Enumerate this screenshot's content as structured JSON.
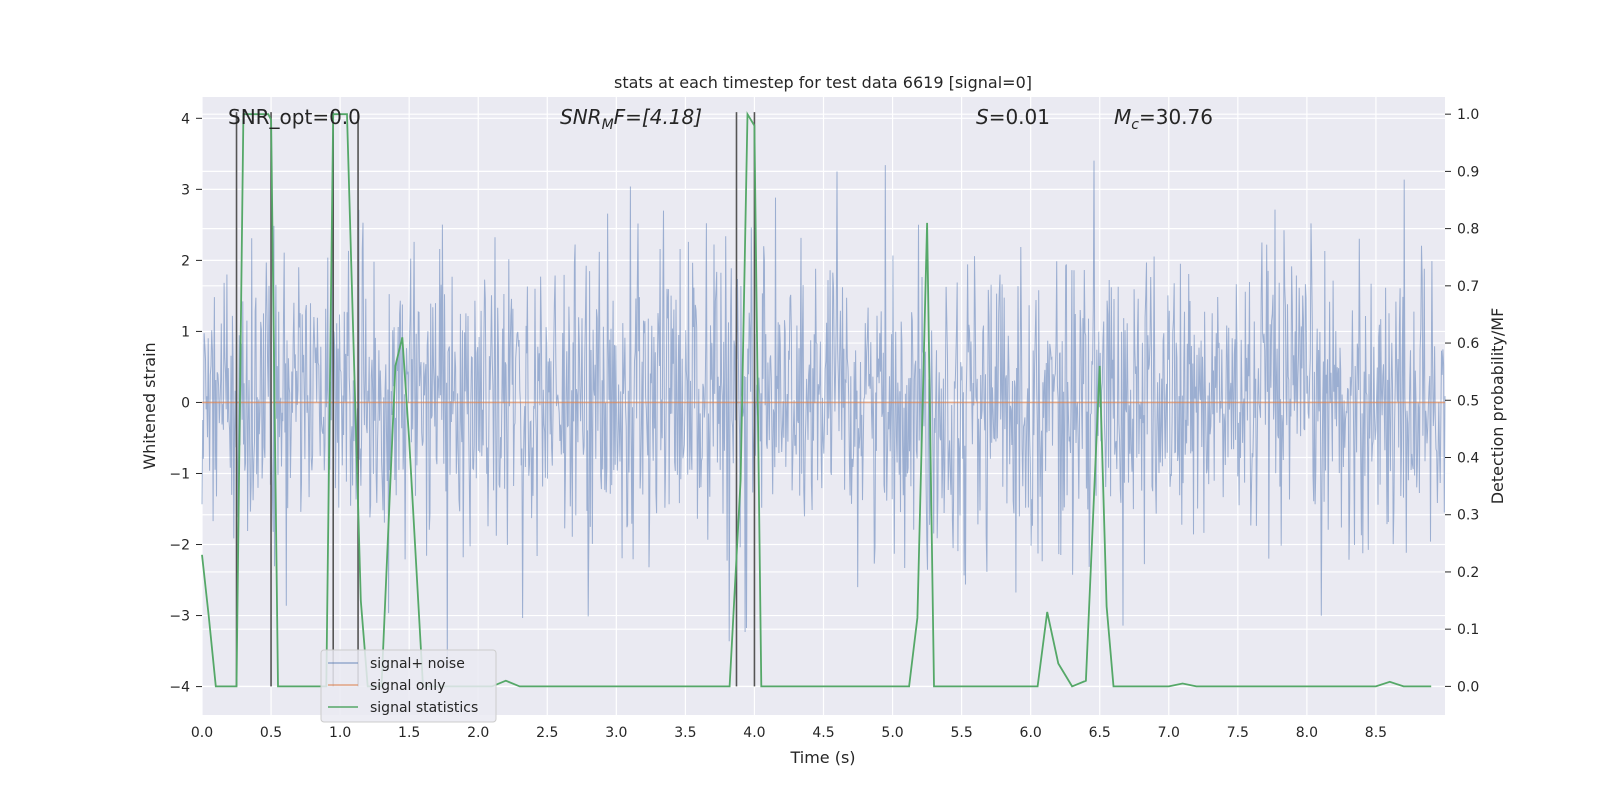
{
  "chart_data": {
    "type": "line",
    "title": "stats at each timestep for test data 6619 [signal=0]",
    "xlabel": "Time (s)",
    "ylabel_left": "Whitened strain",
    "ylabel_right": "Detection probability/MF",
    "xlim": [
      0.0,
      9.0
    ],
    "ylim_left": [
      -4.4,
      4.3
    ],
    "ylim_right": [
      -0.05,
      1.03
    ],
    "xticks": [
      0.0,
      0.5,
      1.0,
      1.5,
      2.0,
      2.5,
      3.0,
      3.5,
      4.0,
      4.5,
      5.0,
      5.5,
      6.0,
      6.5,
      7.0,
      7.5,
      8.0,
      8.5
    ],
    "xtick_labels": [
      "0.0",
      "0.5",
      "1.0",
      "1.5",
      "2.0",
      "2.5",
      "3.0",
      "3.5",
      "4.0",
      "4.5",
      "5.0",
      "5.5",
      "6.0",
      "6.5",
      "7.0",
      "7.5",
      "8.0",
      "8.5"
    ],
    "yticks_left": [
      4,
      3,
      2,
      1,
      0,
      -1,
      -2,
      -3,
      -4
    ],
    "ytick_labels_left": [
      "4",
      "3",
      "2",
      "1",
      "0",
      "−1",
      "−2",
      "−3",
      "−4"
    ],
    "yticks_right": [
      1.0,
      0.9,
      0.8,
      0.7,
      0.6,
      0.5,
      0.4,
      0.3,
      0.2,
      0.1,
      0.0
    ],
    "ytick_labels_right": [
      "1.0",
      "0.9",
      "0.8",
      "0.7",
      "0.6",
      "0.5",
      "0.4",
      "0.3",
      "0.2",
      "0.1",
      "0.0"
    ],
    "annotations": [
      {
        "id": "snr-opt",
        "text": "SNR_opt=0.0",
        "x": 0.2
      },
      {
        "id": "snr-mf",
        "text": "SNR_MF=[4.18]",
        "x": 2.6
      },
      {
        "id": "s-value",
        "text": "S=0.01",
        "x": 5.6
      },
      {
        "id": "mc-value",
        "text": "M_c=30.76",
        "x": 6.6
      }
    ],
    "annotation_parts": {
      "snr_opt": "SNR_opt=0.0",
      "snr_mf_base": "SNR",
      "snr_mf_sub": "M",
      "snr_mf_rest": "F=[4.18]",
      "s_sym": "S",
      "s_rest": "=0.01",
      "mc_base": "M",
      "mc_sub": "c",
      "mc_rest": "=30.76"
    },
    "series": [
      {
        "name": "signal+ noise",
        "color": "#4c72b0",
        "description": "whitened strain noise band (sampled)",
        "band_max": 2.0
      },
      {
        "name": "signal only",
        "color": "#dd8452",
        "values_const": 0.0
      },
      {
        "name": "signal statistics",
        "color": "#55a868",
        "axis": "right",
        "x": [
          0.0,
          0.05,
          0.1,
          0.25,
          0.3,
          0.35,
          0.48,
          0.5,
          0.55,
          0.6,
          0.7,
          0.8,
          0.9,
          0.95,
          1.0,
          1.05,
          1.15,
          1.2,
          1.3,
          1.4,
          1.45,
          1.5,
          1.6,
          1.7,
          2.0,
          2.1,
          2.2,
          2.3,
          2.5,
          3.0,
          3.5,
          3.82,
          3.9,
          3.95,
          4.0,
          4.05,
          4.2,
          4.5,
          5.0,
          5.12,
          5.18,
          5.25,
          5.3,
          5.5,
          6.0,
          6.05,
          6.12,
          6.2,
          6.3,
          6.4,
          6.5,
          6.55,
          6.6,
          6.65,
          6.75,
          7.0,
          7.1,
          7.2,
          7.5,
          8.0,
          8.5,
          8.6,
          8.7,
          8.9
        ],
        "values": [
          0.23,
          0.12,
          0.0,
          0.0,
          1.0,
          1.0,
          1.0,
          0.99,
          0.0,
          0.0,
          0.0,
          0.0,
          0.0,
          1.0,
          1.0,
          1.0,
          0.15,
          0.0,
          0.0,
          0.56,
          0.61,
          0.43,
          0.0,
          0.0,
          0.0,
          0.0,
          0.01,
          0.0,
          0.0,
          0.0,
          0.0,
          0.0,
          0.36,
          1.0,
          0.98,
          0.0,
          0.0,
          0.0,
          0.0,
          0.0,
          0.12,
          0.81,
          0.0,
          0.0,
          0.0,
          0.0,
          0.13,
          0.04,
          0.0,
          0.01,
          0.56,
          0.14,
          0.0,
          0.0,
          0.0,
          0.0,
          0.005,
          0.0,
          0.0,
          0.0,
          0.0,
          0.008,
          0.0,
          0.0
        ]
      }
    ],
    "vertical_markers": [
      0.25,
      0.5,
      0.95,
      1.13,
      3.87,
      4.0
    ],
    "legend": {
      "placement": "lower-left",
      "entries": [
        "signal+ noise",
        "signal only",
        "signal statistics"
      ]
    },
    "grid": true
  },
  "colors": {
    "plot_bg": "#eaeaf2",
    "grid": "#ffffff",
    "noise": "#4c72b0",
    "signal": "#dd8452",
    "stats": "#55a868",
    "marker": "#555555"
  }
}
